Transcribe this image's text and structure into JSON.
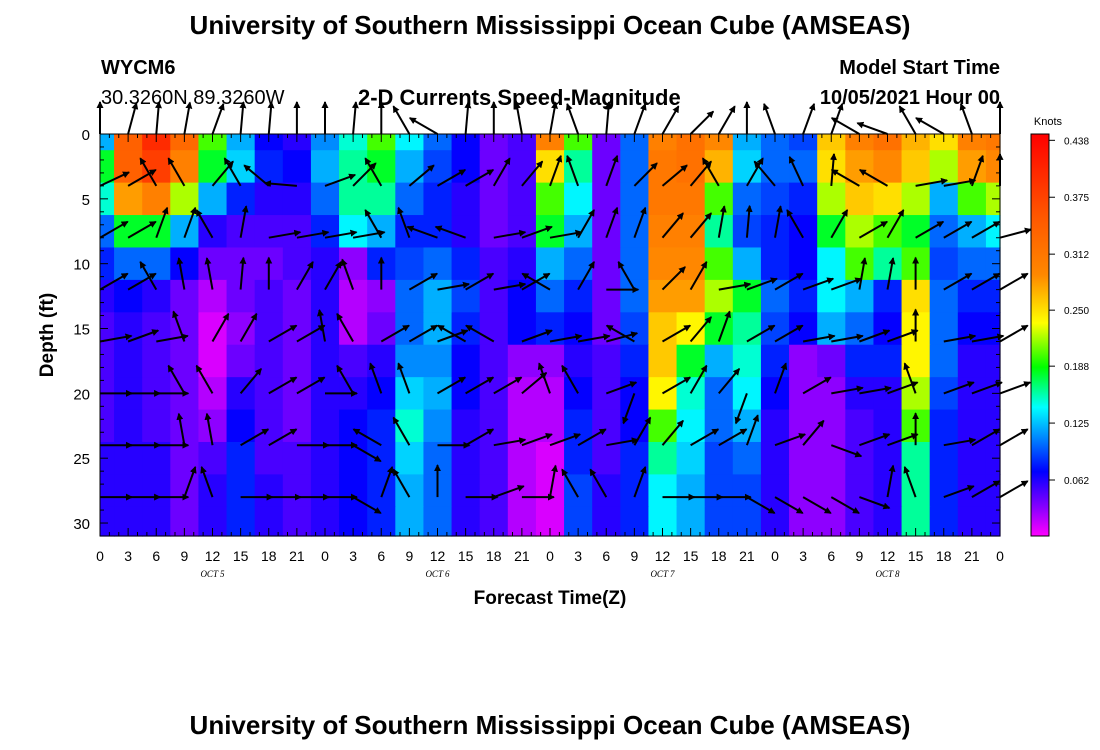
{
  "page": {
    "title_top": "University of Southern Mississippi Ocean Cube (AMSEAS)",
    "title_bottom": "University of Southern Mississippi Ocean Cube (AMSEAS)",
    "station": "WYCM6",
    "location": "30.3260N  89.3260W",
    "subtitle": "2-D Currents Speed-Magnitude",
    "model_label": "Model Start Time",
    "model_time": "10/05/2021 Hour 00"
  },
  "chart_data": {
    "type": "heatmap",
    "title": "2-D Currents Speed-Magnitude",
    "xlabel": "Forecast Time(Z)",
    "ylabel": "Depth (ft)",
    "ylim": [
      0,
      31
    ],
    "y_ticks": [
      0,
      5,
      10,
      15,
      20,
      25,
      30
    ],
    "x_tick_labels": [
      "0",
      "3",
      "6",
      "9",
      "12",
      "15",
      "18",
      "21",
      "0",
      "3",
      "6",
      "9",
      "12",
      "15",
      "18",
      "21",
      "0",
      "3",
      "6",
      "9",
      "12",
      "15",
      "18",
      "21",
      "0",
      "3",
      "6",
      "9",
      "12",
      "15",
      "18",
      "21",
      "0"
    ],
    "day_labels": [
      "OCT 5",
      "OCT 6",
      "OCT 7",
      "OCT 8"
    ],
    "colorbar": {
      "label": "Knots",
      "ticks": [
        "0.438",
        "0.375",
        "0.312",
        "0.250",
        "0.188",
        "0.125",
        "0.062"
      ],
      "range": [
        0,
        0.445
      ]
    },
    "grid": false,
    "depth_rows": [
      0,
      2.5,
      5,
      7.5,
      10,
      12.5,
      15,
      17.5,
      20,
      22.5,
      25,
      27.5,
      30
    ],
    "speed_knots_by_depth": [
      [
        0.12,
        0.34,
        0.4,
        0.33,
        0.2,
        0.12,
        0.07,
        0.06,
        0.11,
        0.15,
        0.2,
        0.14,
        0.1,
        0.07,
        0.04,
        0.05,
        0.3,
        0.2,
        0.04,
        0.1,
        0.3,
        0.32,
        0.29,
        0.12,
        0.1,
        0.09,
        0.26,
        0.3,
        0.32,
        0.27,
        0.25,
        0.3,
        0.31
      ],
      [
        0.18,
        0.34,
        0.38,
        0.3,
        0.18,
        0.13,
        0.08,
        0.07,
        0.12,
        0.16,
        0.18,
        0.12,
        0.09,
        0.07,
        0.04,
        0.05,
        0.25,
        0.16,
        0.04,
        0.1,
        0.31,
        0.32,
        0.27,
        0.13,
        0.1,
        0.1,
        0.25,
        0.28,
        0.29,
        0.26,
        0.22,
        0.28,
        0.29
      ],
      [
        0.15,
        0.28,
        0.3,
        0.22,
        0.12,
        0.08,
        0.06,
        0.06,
        0.1,
        0.16,
        0.16,
        0.1,
        0.08,
        0.06,
        0.04,
        0.05,
        0.2,
        0.14,
        0.04,
        0.1,
        0.31,
        0.31,
        0.2,
        0.1,
        0.09,
        0.08,
        0.22,
        0.26,
        0.25,
        0.22,
        0.12,
        0.2,
        0.22
      ],
      [
        0.1,
        0.18,
        0.18,
        0.12,
        0.06,
        0.05,
        0.05,
        0.05,
        0.08,
        0.14,
        0.12,
        0.08,
        0.08,
        0.06,
        0.04,
        0.05,
        0.18,
        0.12,
        0.04,
        0.1,
        0.3,
        0.3,
        0.16,
        0.09,
        0.08,
        0.07,
        0.18,
        0.22,
        0.2,
        0.18,
        0.1,
        0.12,
        0.14
      ],
      [
        0.08,
        0.1,
        0.1,
        0.07,
        0.04,
        0.04,
        0.04,
        0.05,
        0.06,
        0.03,
        0.08,
        0.09,
        0.1,
        0.08,
        0.05,
        0.06,
        0.12,
        0.1,
        0.04,
        0.1,
        0.29,
        0.29,
        0.2,
        0.12,
        0.08,
        0.07,
        0.14,
        0.2,
        0.16,
        0.2,
        0.09,
        0.1,
        0.1
      ],
      [
        0.06,
        0.07,
        0.06,
        0.04,
        0.02,
        0.04,
        0.05,
        0.04,
        0.06,
        0.02,
        0.03,
        0.1,
        0.12,
        0.09,
        0.05,
        0.07,
        0.1,
        0.08,
        0.04,
        0.1,
        0.28,
        0.28,
        0.22,
        0.18,
        0.1,
        0.08,
        0.14,
        0.12,
        0.08,
        0.25,
        0.1,
        0.08,
        0.08
      ],
      [
        0.05,
        0.06,
        0.05,
        0.04,
        0.01,
        0.03,
        0.05,
        0.04,
        0.06,
        0.02,
        0.04,
        0.1,
        0.12,
        0.08,
        0.05,
        0.07,
        0.08,
        0.07,
        0.04,
        0.09,
        0.26,
        0.24,
        0.18,
        0.16,
        0.09,
        0.07,
        0.12,
        0.1,
        0.07,
        0.24,
        0.1,
        0.07,
        0.07
      ],
      [
        0.05,
        0.06,
        0.05,
        0.04,
        0.01,
        0.04,
        0.05,
        0.04,
        0.06,
        0.05,
        0.06,
        0.11,
        0.11,
        0.07,
        0.05,
        0.03,
        0.03,
        0.06,
        0.05,
        0.08,
        0.26,
        0.18,
        0.12,
        0.15,
        0.08,
        0.03,
        0.04,
        0.08,
        0.08,
        0.24,
        0.1,
        0.06,
        0.06
      ],
      [
        0.05,
        0.06,
        0.05,
        0.04,
        0.02,
        0.06,
        0.05,
        0.04,
        0.06,
        0.06,
        0.07,
        0.13,
        0.12,
        0.07,
        0.05,
        0.02,
        0.02,
        0.07,
        0.05,
        0.07,
        0.24,
        0.15,
        0.1,
        0.14,
        0.07,
        0.03,
        0.03,
        0.06,
        0.06,
        0.22,
        0.09,
        0.06,
        0.06
      ],
      [
        0.05,
        0.06,
        0.05,
        0.04,
        0.03,
        0.07,
        0.05,
        0.04,
        0.06,
        0.07,
        0.08,
        0.15,
        0.11,
        0.06,
        0.05,
        0.02,
        0.02,
        0.08,
        0.05,
        0.07,
        0.2,
        0.14,
        0.1,
        0.12,
        0.06,
        0.03,
        0.03,
        0.05,
        0.06,
        0.2,
        0.08,
        0.06,
        0.06
      ],
      [
        0.06,
        0.06,
        0.06,
        0.04,
        0.05,
        0.08,
        0.05,
        0.05,
        0.06,
        0.07,
        0.08,
        0.13,
        0.1,
        0.06,
        0.05,
        0.02,
        0.01,
        0.08,
        0.05,
        0.08,
        0.16,
        0.13,
        0.09,
        0.1,
        0.06,
        0.03,
        0.03,
        0.05,
        0.06,
        0.16,
        0.08,
        0.06,
        0.06
      ],
      [
        0.06,
        0.06,
        0.06,
        0.04,
        0.06,
        0.08,
        0.06,
        0.05,
        0.06,
        0.07,
        0.08,
        0.12,
        0.1,
        0.06,
        0.05,
        0.02,
        0.01,
        0.09,
        0.06,
        0.08,
        0.14,
        0.12,
        0.09,
        0.09,
        0.06,
        0.03,
        0.03,
        0.05,
        0.06,
        0.16,
        0.08,
        0.06,
        0.06
      ],
      [
        0.06,
        0.06,
        0.06,
        0.04,
        0.06,
        0.08,
        0.06,
        0.05,
        0.06,
        0.07,
        0.08,
        0.12,
        0.1,
        0.06,
        0.05,
        0.02,
        0.01,
        0.09,
        0.06,
        0.08,
        0.14,
        0.12,
        0.09,
        0.09,
        0.06,
        0.03,
        0.03,
        0.05,
        0.06,
        0.16,
        0.08,
        0.06,
        0.06
      ]
    ],
    "arrow_depths": [
      0,
      4,
      8,
      12,
      16,
      20,
      24,
      28
    ],
    "arrow_direction_deg_by_depth": [
      [
        0,
        15,
        5,
        10,
        20,
        5,
        5,
        0,
        0,
        5,
        0,
        330,
        300,
        5,
        0,
        350,
        10,
        340,
        5,
        20,
        30,
        45,
        30,
        0,
        340,
        20,
        20,
        300,
        290,
        330,
        300,
        340,
        0
      ],
      [
        65,
        60,
        330,
        330,
        40,
        330,
        310,
        275,
        70,
        45,
        330,
        50,
        60,
        60,
        30,
        40,
        20,
        340,
        20,
        45,
        50,
        40,
        330,
        30,
        320,
        335,
        5,
        300,
        300,
        80,
        80,
        20,
        0
      ],
      [
        60,
        60,
        20,
        20,
        330,
        10,
        80,
        80,
        80,
        80,
        330,
        340,
        290,
        290,
        80,
        70,
        80,
        30,
        20,
        20,
        40,
        40,
        10,
        5,
        10,
        330,
        30,
        60,
        30,
        60,
        60,
        60,
        75
      ],
      [
        60,
        60,
        330,
        350,
        350,
        5,
        0,
        30,
        30,
        340,
        0,
        60,
        80,
        60,
        80,
        60,
        300,
        30,
        90,
        330,
        45,
        30,
        80,
        70,
        60,
        70,
        70,
        10,
        10,
        0,
        60,
        60,
        60
      ],
      [
        80,
        70,
        80,
        340,
        30,
        30,
        60,
        60,
        350,
        330,
        60,
        60,
        70,
        300,
        300,
        70,
        80,
        80,
        75,
        300,
        60,
        40,
        20,
        60,
        60,
        80,
        80,
        70,
        70,
        0,
        80,
        80,
        60
      ],
      [
        90,
        90,
        90,
        330,
        330,
        40,
        60,
        60,
        90,
        330,
        340,
        340,
        60,
        60,
        60,
        50,
        340,
        330,
        70,
        200,
        60,
        30,
        40,
        200,
        20,
        60,
        80,
        80,
        70,
        340,
        70,
        70,
        70
      ],
      [
        90,
        90,
        90,
        350,
        350,
        60,
        60,
        90,
        90,
        120,
        300,
        330,
        90,
        60,
        80,
        70,
        70,
        60,
        80,
        30,
        40,
        60,
        60,
        20,
        70,
        40,
        110,
        70,
        70,
        0,
        80,
        60,
        60
      ],
      [
        90,
        90,
        90,
        20,
        340,
        90,
        90,
        90,
        90,
        120,
        20,
        330,
        0,
        90,
        70,
        90,
        10,
        330,
        330,
        20,
        90,
        90,
        90,
        120,
        120,
        120,
        120,
        110,
        10,
        340,
        70,
        60,
        60
      ]
    ]
  }
}
